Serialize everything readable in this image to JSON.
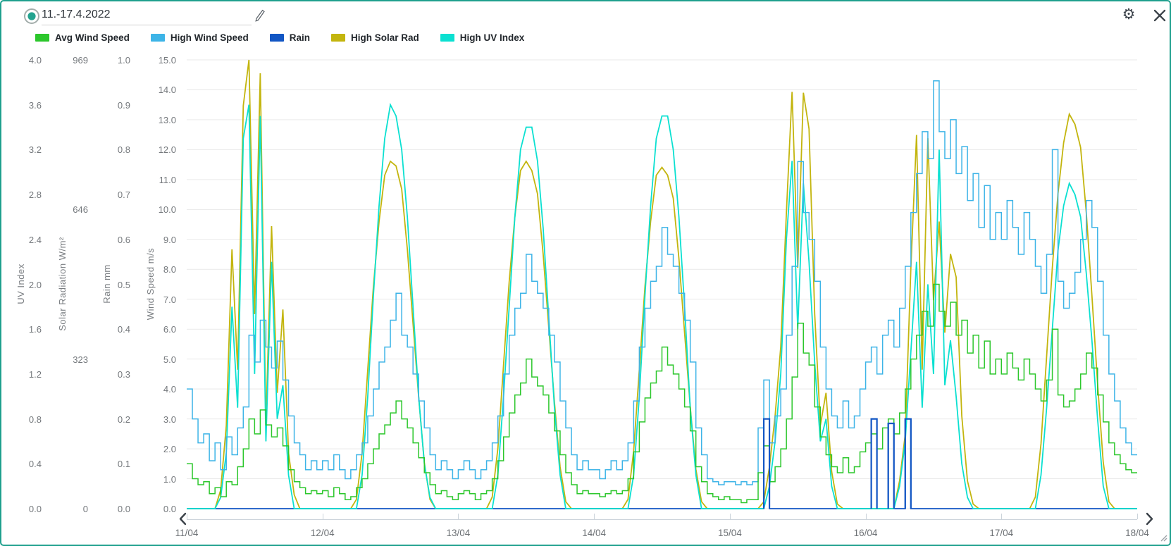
{
  "window": {
    "border_color": "#1fa08e"
  },
  "header": {
    "title": "11.-17.4.2022",
    "radio_icon": "radio-selected",
    "edit_icon": "pencil",
    "settings_icon": "gear",
    "settings_glyph": "⚙",
    "close_icon": "x"
  },
  "legend": [
    {
      "label": "Avg Wind Speed",
      "color": "#2cc72c"
    },
    {
      "label": "High Wind Speed",
      "color": "#3db4e7"
    },
    {
      "label": "Rain",
      "color": "#1256c4"
    },
    {
      "label": "High Solar Rad",
      "color": "#c3b50e"
    },
    {
      "label": "High UV Index",
      "color": "#0be0d1"
    }
  ],
  "axes": {
    "uv": {
      "title": "UV Index",
      "max": 4,
      "ticks": [
        "4.0",
        "3.6",
        "3.2",
        "2.8",
        "2.4",
        "2.0",
        "1.6",
        "1.2",
        "0.8",
        "0.4",
        "0.0"
      ]
    },
    "solar": {
      "title": "Solar Radiation W/m²",
      "max": 969,
      "ticks": [
        "969",
        "646",
        "323",
        "0"
      ]
    },
    "rain": {
      "title": "Rain mm",
      "max": 1.0,
      "ticks": [
        "1.0",
        "0.9",
        "0.8",
        "0.7",
        "0.6",
        "0.5",
        "0.4",
        "0.3",
        "0.2",
        "0.1",
        "0.0"
      ]
    },
    "wind": {
      "title": "Wind Speed m/s",
      "max": 15,
      "ticks": [
        "15.0",
        "14.0",
        "13.0",
        "12.0",
        "11.0",
        "10.0",
        "9.0",
        "8.0",
        "7.0",
        "6.0",
        "5.0",
        "4.0",
        "3.0",
        "2.0",
        "1.0",
        "0.0"
      ]
    }
  },
  "x_axis": {
    "labels": [
      "11/04",
      "12/04",
      "13/04",
      "14/04",
      "15/04",
      "16/04",
      "17/04",
      "18/04"
    ]
  },
  "nav": {
    "prev_icon": "chevron-left",
    "next_icon": "chevron-right"
  },
  "chart_data": {
    "type": "line",
    "title": "11.-17.4.2022",
    "x_unit": "hours from 11/04 00:00, 7 days, hourly samples",
    "grid": "horizontal, every 1.0 m/s of wind axis",
    "legend_position": "top",
    "axis_ranges": {
      "uv": [
        0,
        4
      ],
      "solar_w_m2": [
        0,
        969
      ],
      "rain_mm": [
        0,
        1.0
      ],
      "wind_m_s": [
        0,
        15
      ]
    },
    "series": [
      {
        "name": "High Solar Rad",
        "axis": "solar",
        "color": "#c3b50e",
        "style": "linear",
        "days": [
          [
            0,
            0,
            0,
            0,
            0,
            0,
            40,
            180,
            560,
            300,
            870,
            969,
            420,
            940,
            180,
            610,
            250,
            430,
            120,
            30,
            0,
            0,
            0,
            0
          ],
          [
            0,
            0,
            0,
            0,
            0,
            0,
            20,
            120,
            300,
            480,
            620,
            720,
            750,
            740,
            690,
            560,
            400,
            240,
            100,
            20,
            0,
            0,
            0,
            0
          ],
          [
            0,
            0,
            0,
            0,
            0,
            0,
            25,
            130,
            310,
            490,
            630,
            730,
            750,
            730,
            680,
            550,
            390,
            230,
            90,
            15,
            0,
            0,
            0,
            0
          ],
          [
            0,
            0,
            0,
            0,
            0,
            0,
            20,
            125,
            300,
            480,
            620,
            720,
            737,
            720,
            670,
            540,
            380,
            220,
            85,
            15,
            0,
            0,
            0,
            0
          ],
          [
            0,
            0,
            0,
            0,
            0,
            0,
            15,
            90,
            200,
            350,
            640,
            900,
            520,
            898,
            820,
            420,
            180,
            250,
            80,
            10,
            0,
            0,
            0,
            0
          ],
          [
            0,
            0,
            0,
            0,
            0,
            0,
            60,
            160,
            520,
            807,
            300,
            800,
            450,
            620,
            380,
            550,
            500,
            200,
            60,
            10,
            0,
            0,
            0,
            0
          ],
          [
            0,
            0,
            0,
            0,
            0,
            0,
            25,
            140,
            330,
            520,
            680,
            790,
            852,
            830,
            780,
            640,
            460,
            270,
            100,
            15,
            0,
            0,
            0,
            0
          ]
        ]
      },
      {
        "name": "High UV Index",
        "axis": "uv",
        "color": "#0be0d1",
        "style": "linear",
        "days": [
          [
            0,
            0,
            0,
            0,
            0,
            0,
            0.1,
            0.5,
            1.8,
            0.9,
            3.3,
            3.6,
            1.2,
            3.5,
            0.6,
            2.2,
            0.8,
            1.1,
            0.3,
            0,
            0,
            0,
            0,
            0
          ],
          [
            0,
            0,
            0,
            0,
            0,
            0,
            0,
            0.3,
            1.0,
            1.9,
            2.7,
            3.3,
            3.6,
            3.5,
            3.2,
            2.6,
            1.8,
            1.0,
            0.4,
            0.1,
            0,
            0,
            0,
            0
          ],
          [
            0,
            0,
            0,
            0,
            0,
            0,
            0,
            0.3,
            1.0,
            1.8,
            2.6,
            3.2,
            3.4,
            3.4,
            3.1,
            2.5,
            1.7,
            0.9,
            0.3,
            0,
            0,
            0,
            0,
            0
          ],
          [
            0,
            0,
            0,
            0,
            0,
            0,
            0,
            0.3,
            1.0,
            1.9,
            2.7,
            3.3,
            3.5,
            3.5,
            3.2,
            2.6,
            1.8,
            0.9,
            0.3,
            0,
            0,
            0,
            0,
            0
          ],
          [
            0,
            0,
            0,
            0,
            0,
            0,
            0,
            0.2,
            0.6,
            1.2,
            2.4,
            3.1,
            1.6,
            2.9,
            2.2,
            1.3,
            0.6,
            0.8,
            0.2,
            0,
            0,
            0,
            0,
            0
          ],
          [
            0,
            0,
            0,
            0,
            0,
            0,
            0.2,
            0.6,
            1.4,
            2.2,
            0.9,
            2.0,
            1.2,
            3.2,
            1.1,
            1.5,
            1.0,
            0.4,
            0.1,
            0,
            0,
            0,
            0,
            0
          ],
          [
            0,
            0,
            0,
            0,
            0,
            0,
            0,
            0.3,
            0.9,
            1.6,
            2.3,
            2.7,
            2.9,
            2.8,
            2.6,
            2.1,
            1.5,
            0.8,
            0.2,
            0,
            0,
            0,
            0,
            0
          ]
        ]
      },
      {
        "name": "High Wind Speed",
        "axis": "wind",
        "color": "#3db4e7",
        "style": "step",
        "days": [
          [
            4.0,
            3.0,
            2.2,
            2.5,
            1.6,
            2.2,
            1.3,
            2.4,
            1.8,
            2.7,
            3.4,
            5.8,
            4.9,
            6.3,
            5.4,
            4.7,
            5.6,
            4.3,
            3.1,
            2.2,
            1.8,
            1.3,
            1.6,
            1.3
          ],
          [
            1.6,
            1.3,
            1.8,
            1.3,
            1.0,
            1.3,
            1.8,
            2.2,
            3.1,
            4.0,
            4.9,
            5.4,
            6.3,
            7.2,
            5.8,
            5.4,
            4.5,
            3.6,
            2.7,
            1.8,
            1.3,
            1.6,
            1.3,
            1.0
          ],
          [
            1.3,
            1.6,
            1.3,
            1.0,
            1.3,
            1.6,
            2.2,
            3.1,
            4.5,
            5.8,
            6.7,
            7.2,
            8.5,
            7.6,
            7.2,
            6.7,
            5.8,
            4.9,
            3.6,
            2.7,
            1.8,
            1.3,
            1.6,
            1.3
          ],
          [
            1.3,
            1.0,
            1.3,
            1.6,
            1.3,
            1.6,
            2.2,
            3.6,
            5.4,
            6.7,
            7.6,
            8.1,
            9.4,
            8.5,
            8.1,
            7.2,
            6.3,
            4.9,
            2.7,
            1.8,
            1.0,
            0.9,
            0.8,
            0.9
          ],
          [
            0.9,
            0.8,
            0.9,
            0.8,
            0.9,
            2.7,
            4.3,
            2.2,
            3.1,
            4.0,
            5.8,
            8.1,
            11.6,
            9.9,
            9.0,
            7.6,
            5.4,
            4.0,
            3.1,
            2.7,
            3.6,
            2.7,
            3.1,
            4.0
          ],
          [
            4.9,
            5.4,
            4.5,
            5.8,
            6.3,
            5.4,
            6.7,
            8.1,
            9.9,
            11.2,
            12.6,
            11.7,
            14.3,
            12.6,
            11.7,
            13.0,
            11.2,
            12.1,
            10.3,
            11.2,
            9.4,
            10.8,
            9.0,
            9.9
          ],
          [
            9.0,
            10.3,
            9.4,
            8.5,
            9.9,
            9.0,
            8.1,
            7.2,
            8.5,
            12.0,
            7.6,
            6.7,
            7.2,
            7.9,
            9.0,
            10.3,
            9.4,
            7.6,
            5.8,
            4.5,
            3.6,
            2.7,
            2.2,
            1.8
          ]
        ]
      },
      {
        "name": "Avg Wind Speed",
        "axis": "wind",
        "color": "#2cc72c",
        "style": "step",
        "days": [
          [
            1.5,
            1.0,
            0.8,
            0.9,
            0.5,
            0.7,
            0.4,
            0.9,
            0.8,
            1.4,
            2.0,
            3.0,
            2.5,
            3.3,
            2.8,
            2.4,
            2.7,
            2.1,
            1.3,
            0.9,
            0.7,
            0.5,
            0.6,
            0.5
          ],
          [
            0.6,
            0.4,
            0.7,
            0.5,
            0.3,
            0.4,
            0.7,
            1.0,
            1.5,
            2.0,
            2.5,
            2.8,
            3.2,
            3.6,
            3.0,
            2.7,
            2.2,
            1.7,
            1.2,
            0.8,
            0.5,
            0.6,
            0.4,
            0.3
          ],
          [
            0.5,
            0.6,
            0.5,
            0.3,
            0.5,
            0.6,
            1.0,
            1.6,
            2.4,
            3.2,
            3.8,
            4.2,
            5.0,
            4.4,
            4.1,
            3.8,
            3.2,
            2.6,
            1.8,
            1.2,
            0.8,
            0.5,
            0.6,
            0.5
          ],
          [
            0.5,
            0.4,
            0.5,
            0.6,
            0.5,
            0.6,
            1.0,
            1.9,
            2.9,
            3.7,
            4.2,
            4.6,
            5.4,
            4.8,
            4.5,
            4.0,
            3.4,
            2.6,
            1.4,
            0.9,
            0.5,
            0.4,
            0.3,
            0.4
          ],
          [
            0.3,
            0.3,
            0.2,
            0.3,
            0.3,
            1.2,
            2.1,
            0.9,
            1.4,
            2.0,
            3.0,
            4.4,
            6.2,
            5.2,
            4.8,
            3.4,
            2.4,
            1.8,
            1.4,
            1.2,
            1.7,
            1.2,
            1.4,
            1.9
          ],
          [
            2.2,
            2.5,
            2.0,
            2.7,
            3.0,
            2.5,
            3.2,
            4.0,
            5.0,
            5.8,
            6.6,
            6.1,
            7.5,
            6.6,
            6.1,
            6.9,
            5.8,
            6.3,
            5.2,
            5.8,
            4.7,
            5.6,
            4.5,
            5.0
          ],
          [
            4.5,
            5.2,
            4.7,
            4.3,
            5.0,
            4.5,
            4.0,
            3.6,
            4.3,
            6.0,
            3.8,
            3.4,
            3.6,
            4.0,
            4.5,
            5.2,
            4.7,
            3.8,
            2.9,
            2.2,
            1.8,
            1.5,
            1.3,
            1.2
          ]
        ]
      },
      {
        "name": "Rain",
        "axis": "rain",
        "color": "#1256c4",
        "style": "step",
        "days": [
          [
            0,
            0,
            0,
            0,
            0,
            0,
            0,
            0,
            0,
            0,
            0,
            0,
            0,
            0,
            0,
            0,
            0,
            0,
            0,
            0,
            0,
            0,
            0,
            0
          ],
          [
            0,
            0,
            0,
            0,
            0,
            0,
            0,
            0,
            0,
            0,
            0,
            0,
            0,
            0,
            0,
            0,
            0,
            0,
            0,
            0,
            0,
            0,
            0,
            0
          ],
          [
            0,
            0,
            0,
            0,
            0,
            0,
            0,
            0,
            0,
            0,
            0,
            0,
            0,
            0,
            0,
            0,
            0,
            0,
            0,
            0,
            0,
            0,
            0,
            0
          ],
          [
            0,
            0,
            0,
            0,
            0,
            0,
            0,
            0,
            0,
            0,
            0,
            0,
            0,
            0,
            0,
            0,
            0,
            0,
            0,
            0,
            0,
            0,
            0,
            0
          ],
          [
            0,
            0,
            0,
            0,
            0,
            0,
            0.2,
            0,
            0,
            0,
            0,
            0,
            0,
            0,
            0,
            0,
            0,
            0,
            0,
            0,
            0,
            0,
            0,
            0
          ],
          [
            0,
            0.2,
            0,
            0,
            0.19,
            0,
            0,
            0.2,
            0,
            0,
            0,
            0,
            0,
            0,
            0,
            0,
            0,
            0,
            0,
            0,
            0,
            0,
            0,
            0
          ],
          [
            0,
            0,
            0,
            0,
            0,
            0,
            0,
            0,
            0,
            0,
            0,
            0,
            0,
            0,
            0,
            0,
            0,
            0,
            0,
            0,
            0,
            0,
            0,
            0
          ]
        ]
      }
    ]
  }
}
